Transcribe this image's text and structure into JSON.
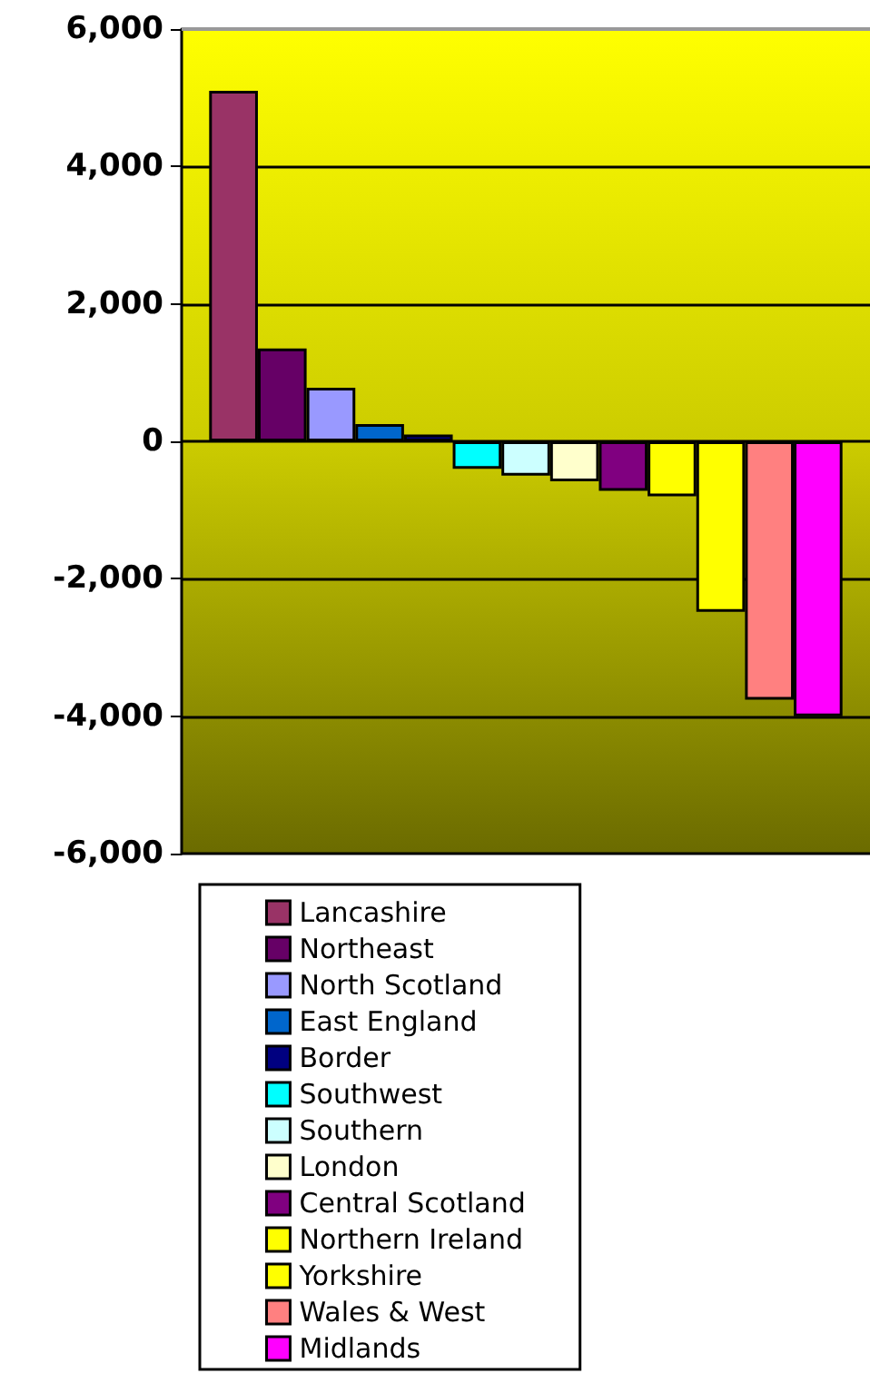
{
  "chart_data": {
    "type": "bar",
    "categories": [
      null
    ],
    "series": [
      {
        "name": "Lancashire",
        "color": "#993366",
        "values": [
          5100
        ]
      },
      {
        "name": "Northeast",
        "color": "#660066",
        "values": [
          1350
        ]
      },
      {
        "name": "North Scotland",
        "color": "#9999ff",
        "values": [
          780
        ]
      },
      {
        "name": "East England",
        "color": "#0066cc",
        "values": [
          250
        ]
      },
      {
        "name": "Border",
        "color": "#000080",
        "values": [
          100
        ]
      },
      {
        "name": "Southwest",
        "color": "#00ffff",
        "values": [
          -400
        ]
      },
      {
        "name": "Southern",
        "color": "#ccffff",
        "values": [
          -500
        ]
      },
      {
        "name": "London",
        "color": "#ffffcc",
        "values": [
          -580
        ]
      },
      {
        "name": "Central Scotland",
        "color": "#800080",
        "values": [
          -720
        ]
      },
      {
        "name": "Northern Ireland",
        "color": "#ffff00",
        "values": [
          -800
        ]
      },
      {
        "name": "Yorkshire",
        "color": "#ffff00",
        "values": [
          -2480
        ]
      },
      {
        "name": "Wales & West",
        "color": "#ff8080",
        "values": [
          -3760
        ]
      },
      {
        "name": "Midlands",
        "color": "#ff00ff",
        "values": [
          -4000
        ]
      }
    ],
    "ylim": [
      -6000,
      6000
    ],
    "yticks": [
      {
        "value": -6000,
        "label": "-6,000"
      },
      {
        "value": -4000,
        "label": "-4,000"
      },
      {
        "value": -2000,
        "label": "-2,000"
      },
      0,
      {
        "value": 2000,
        "label": "2,000"
      },
      {
        "value": 4000,
        "label": "4,000"
      },
      {
        "value": 6000,
        "label": "6,000"
      }
    ],
    "grid": "y",
    "legend": "bottom"
  }
}
